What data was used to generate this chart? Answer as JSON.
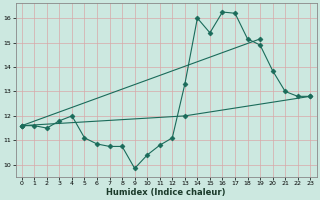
{
  "xlabel": "Humidex (Indice chaleur)",
  "bg_color": "#cce8e0",
  "line_color": "#1a6b5a",
  "grid_color": "#d8a8a8",
  "xlim": [
    -0.5,
    23.5
  ],
  "ylim": [
    9.5,
    16.6
  ],
  "xticks": [
    0,
    1,
    2,
    3,
    4,
    5,
    6,
    7,
    8,
    9,
    10,
    11,
    12,
    13,
    14,
    15,
    16,
    17,
    18,
    19,
    20,
    21,
    22,
    23
  ],
  "yticks": [
    10,
    11,
    12,
    13,
    14,
    15,
    16
  ],
  "line1_x": [
    0,
    1,
    2,
    3,
    4,
    5,
    6,
    7,
    8,
    9,
    10,
    11,
    12,
    13,
    14,
    15,
    16,
    17,
    18,
    19,
    20,
    21,
    22,
    23
  ],
  "line1_y": [
    11.6,
    11.6,
    11.5,
    11.8,
    12.0,
    11.1,
    10.85,
    10.75,
    10.75,
    9.85,
    10.4,
    10.8,
    11.1,
    13.3,
    16.0,
    15.4,
    16.25,
    16.2,
    15.15,
    14.9,
    13.85,
    13.0,
    12.8,
    12.8
  ],
  "line2_x": [
    0,
    19
  ],
  "line2_y": [
    11.6,
    15.15
  ],
  "line3_x": [
    0,
    13,
    23
  ],
  "line3_y": [
    11.6,
    12.0,
    12.8
  ]
}
